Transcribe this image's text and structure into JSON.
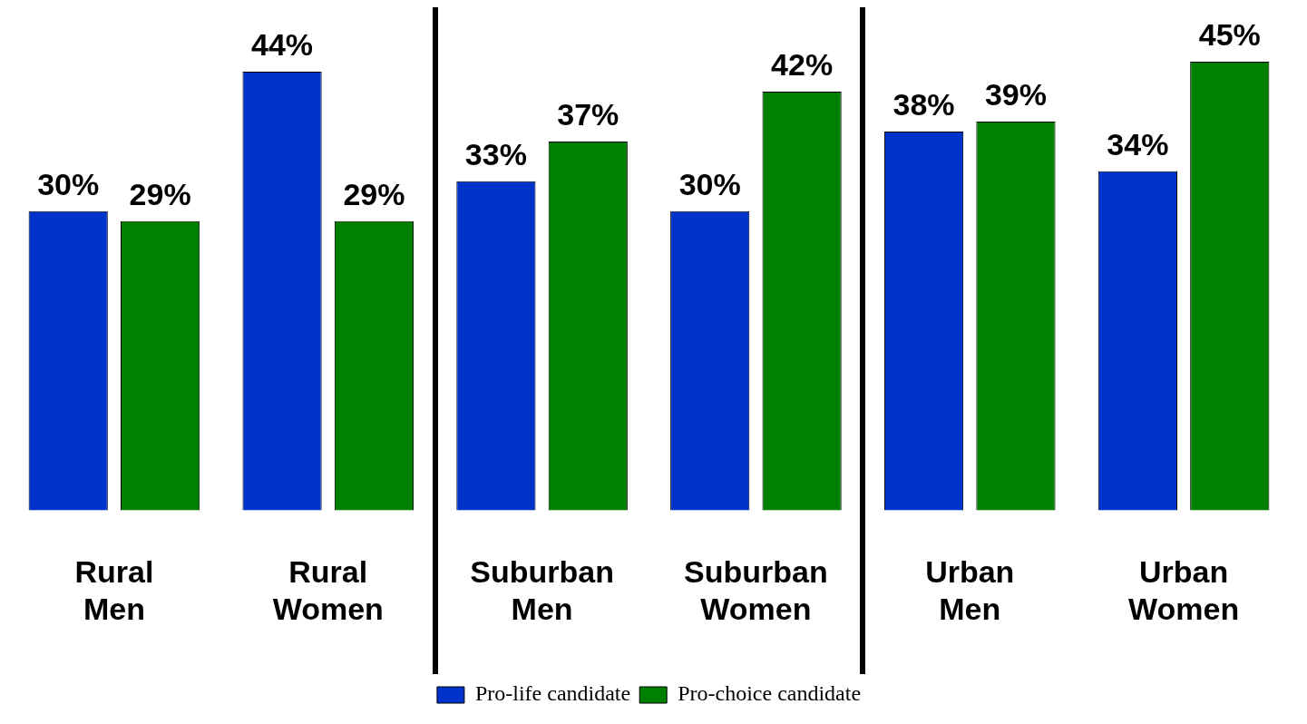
{
  "chart_data": {
    "type": "bar",
    "categories": [
      "Rural Men",
      "Rural Women",
      "Suburban Men",
      "Suburban Women",
      "Urban Men",
      "Urban Women"
    ],
    "series": [
      {
        "name": "Pro-life candidate",
        "color": "#0033cc",
        "values": [
          30,
          44,
          33,
          30,
          38,
          34
        ],
        "value_labels": [
          "30%",
          "44%",
          "33%",
          "30%",
          "38%",
          "34%"
        ]
      },
      {
        "name": "Pro-choice candidate",
        "color": "#008000",
        "values": [
          29,
          29,
          37,
          42,
          39,
          45
        ],
        "value_labels": [
          "29%",
          "29%",
          "37%",
          "42%",
          "39%",
          "45%"
        ]
      }
    ],
    "legend": "bottom",
    "grid": false
  }
}
